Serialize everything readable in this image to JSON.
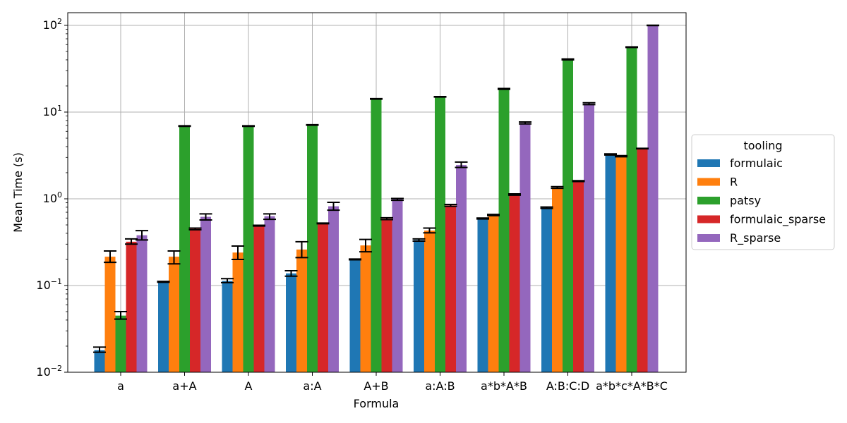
{
  "chart_data": {
    "type": "bar",
    "yscale": "log",
    "xlabel": "Formula",
    "ylabel": "Mean Time (s)",
    "ylim": [
      0.01,
      140
    ],
    "grid": true,
    "legend": {
      "title": "tooling",
      "placement": "outside-right"
    },
    "yticks": [
      {
        "value": 0.01,
        "base": "10",
        "exp": "−2"
      },
      {
        "value": 0.1,
        "base": "10",
        "exp": "−1"
      },
      {
        "value": 1,
        "base": "10",
        "exp": "0"
      },
      {
        "value": 10,
        "base": "10",
        "exp": "1"
      },
      {
        "value": 100,
        "base": "10",
        "exp": "2"
      }
    ],
    "categories": [
      "a",
      "a+A",
      "A",
      "a:A",
      "A+B",
      "a:A:B",
      "a*b*A*B",
      "A:B:C:D",
      "a*b*c*A*B*C"
    ],
    "series": [
      {
        "name": "formulaic",
        "color": "#1f77b4",
        "values": [
          0.018,
          0.11,
          0.113,
          0.138,
          0.2,
          0.335,
          0.59,
          0.79,
          3.25
        ],
        "err_low": [
          0.017,
          0.109,
          0.108,
          0.128,
          0.198,
          0.325,
          0.585,
          0.775,
          3.2
        ],
        "err_high": [
          0.0195,
          0.1115,
          0.12,
          0.148,
          0.202,
          0.345,
          0.6,
          0.805,
          3.3
        ]
      },
      {
        "name": "R",
        "color": "#ff7f0e",
        "values": [
          0.215,
          0.215,
          0.24,
          0.26,
          0.29,
          0.43,
          0.65,
          1.35,
          3.1
        ],
        "err_low": [
          0.185,
          0.178,
          0.2,
          0.21,
          0.245,
          0.405,
          0.64,
          1.32,
          3.05
        ],
        "err_high": [
          0.25,
          0.25,
          0.285,
          0.32,
          0.34,
          0.46,
          0.66,
          1.38,
          3.15
        ]
      },
      {
        "name": "patsy",
        "color": "#2ca02c",
        "values": [
          0.045,
          6.9,
          6.9,
          7.1,
          14.2,
          15.0,
          18.5,
          40.5,
          56.0
        ],
        "err_low": [
          0.041,
          6.85,
          6.85,
          7.05,
          14.1,
          14.9,
          18.3,
          40.0,
          55.5
        ],
        "err_high": [
          0.05,
          6.95,
          6.95,
          7.15,
          14.3,
          15.1,
          18.7,
          41.0,
          56.5
        ]
      },
      {
        "name": "formulaic_sparse",
        "color": "#d62728",
        "values": [
          0.32,
          0.45,
          0.49,
          0.52,
          0.59,
          0.84,
          1.12,
          1.6,
          3.8
        ],
        "err_low": [
          0.3,
          0.44,
          0.485,
          0.515,
          0.575,
          0.82,
          1.1,
          1.58,
          3.78
        ],
        "err_high": [
          0.345,
          0.46,
          0.495,
          0.525,
          0.605,
          0.86,
          1.14,
          1.62,
          3.82
        ]
      },
      {
        "name": "R_sparse",
        "color": "#9467bd",
        "values": [
          0.38,
          0.62,
          0.63,
          0.82,
          0.99,
          2.45,
          7.5,
          12.5,
          100.0
        ],
        "err_low": [
          0.335,
          0.57,
          0.58,
          0.74,
          0.96,
          2.3,
          7.3,
          12.2,
          99.5
        ],
        "err_high": [
          0.43,
          0.67,
          0.67,
          0.91,
          1.01,
          2.65,
          7.7,
          12.8,
          100.5
        ]
      }
    ]
  }
}
